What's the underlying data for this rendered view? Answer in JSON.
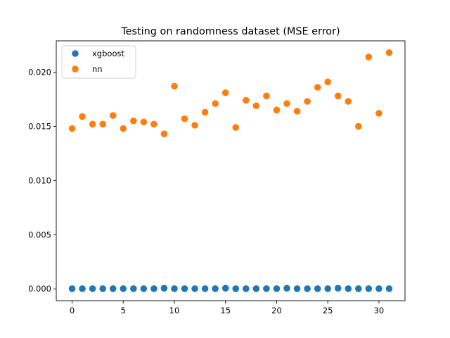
{
  "chart_data": {
    "type": "scatter",
    "title": "Testing on randomness dataset (MSE error)",
    "xlabel": "",
    "ylabel": "",
    "xlim": [
      -1.55,
      32.55
    ],
    "ylim": [
      -0.00109,
      0.02289
    ],
    "xticks": [
      0,
      5,
      10,
      15,
      20,
      25,
      30
    ],
    "xtick_labels": [
      "0",
      "5",
      "10",
      "15",
      "20",
      "25",
      "30"
    ],
    "yticks": [
      0.0,
      0.005,
      0.01,
      0.015,
      0.02
    ],
    "ytick_labels": [
      "0.000",
      "0.005",
      "0.010",
      "0.015",
      "0.020"
    ],
    "grid": false,
    "legend_position": "top-left",
    "series": [
      {
        "name": "xgboost",
        "color": "#1f77b4",
        "x": [
          0,
          1,
          2,
          3,
          4,
          5,
          6,
          7,
          8,
          9,
          10,
          11,
          12,
          13,
          14,
          15,
          16,
          17,
          18,
          19,
          20,
          21,
          22,
          23,
          24,
          25,
          26,
          27,
          28,
          29,
          30,
          31
        ],
        "y": [
          2e-05,
          2e-05,
          2e-05,
          2e-05,
          2e-05,
          2e-05,
          2e-05,
          2e-05,
          2e-05,
          6e-05,
          2e-05,
          2e-05,
          2e-05,
          2e-05,
          2e-05,
          6e-05,
          2e-05,
          2e-05,
          2e-05,
          2e-05,
          2e-05,
          6e-05,
          2e-05,
          2e-05,
          2e-05,
          2e-05,
          6e-05,
          2e-05,
          2e-05,
          2e-05,
          2e-05,
          2e-05
        ]
      },
      {
        "name": "nn",
        "color": "#ff7f0e",
        "x": [
          0,
          1,
          2,
          3,
          4,
          5,
          6,
          7,
          8,
          9,
          10,
          11,
          12,
          13,
          14,
          15,
          16,
          17,
          18,
          19,
          20,
          21,
          22,
          23,
          24,
          25,
          26,
          27,
          28,
          29,
          30,
          31
        ],
        "y": [
          0.0148,
          0.0159,
          0.0152,
          0.0152,
          0.016,
          0.0148,
          0.0155,
          0.0154,
          0.0152,
          0.0143,
          0.0187,
          0.0157,
          0.0151,
          0.0163,
          0.0171,
          0.0181,
          0.0149,
          0.0174,
          0.0169,
          0.0178,
          0.0165,
          0.0171,
          0.0164,
          0.0173,
          0.0186,
          0.0191,
          0.0178,
          0.0173,
          0.015,
          0.0214,
          0.0162,
          0.0218
        ]
      }
    ]
  }
}
